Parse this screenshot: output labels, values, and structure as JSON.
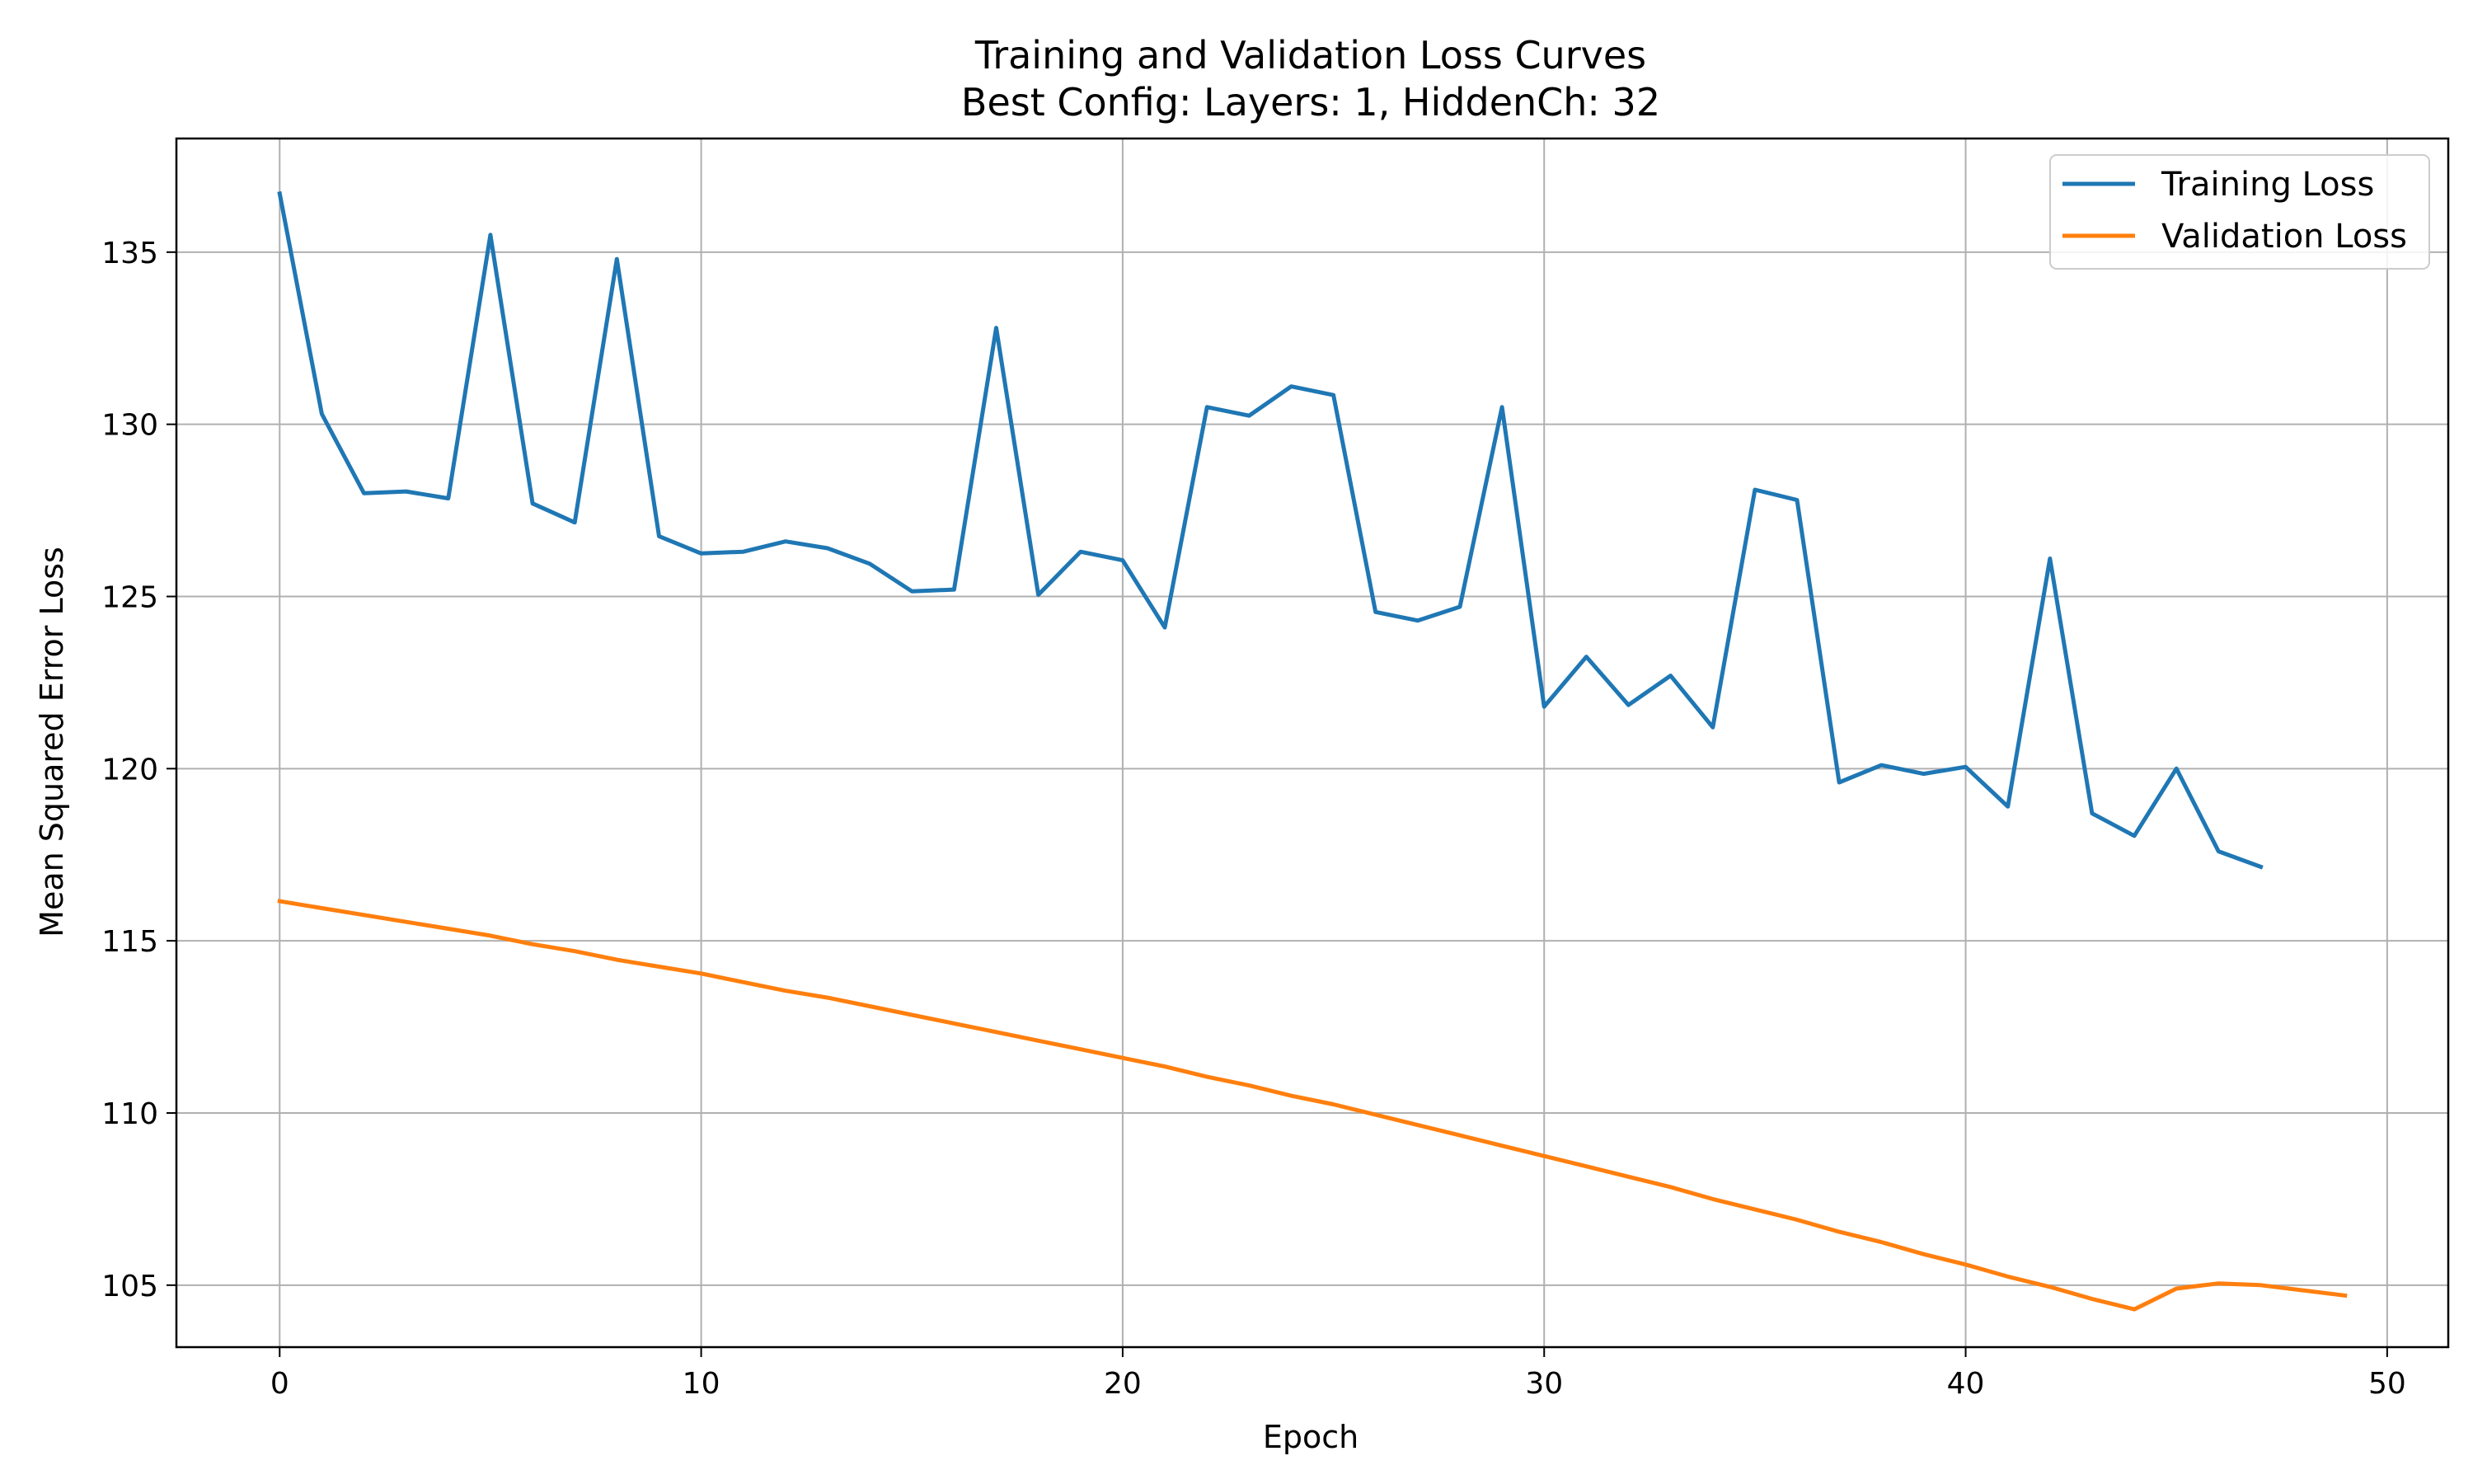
{
  "chart_data": {
    "type": "line",
    "title": "Training and Validation Loss Curves",
    "subtitle": "Best Config: Layers: 1, HiddenCh: 32",
    "xlabel": "Epoch",
    "ylabel": "Mean Squared Error Loss",
    "xlim": [
      -2.45,
      51.45
    ],
    "ylim": [
      103.2,
      138.3
    ],
    "xticks": [
      0,
      10,
      20,
      30,
      40,
      50
    ],
    "yticks": [
      105,
      110,
      115,
      120,
      125,
      130,
      135
    ],
    "grid": true,
    "legend_position": "top-right",
    "series": [
      {
        "name": "Training Loss",
        "color": "#1f77b4",
        "x": [
          0,
          1,
          2,
          3,
          4,
          5,
          6,
          7,
          8,
          9,
          10,
          11,
          12,
          13,
          14,
          15,
          16,
          17,
          18,
          19,
          20,
          21,
          22,
          23,
          24,
          25,
          26,
          27,
          28,
          29,
          30,
          31,
          32,
          33,
          34,
          35,
          36,
          37,
          38,
          39,
          40,
          41,
          42,
          43,
          44,
          45,
          46,
          47
        ],
        "values": [
          136.7,
          130.3,
          128.0,
          128.05,
          127.85,
          135.5,
          127.7,
          127.15,
          134.8,
          126.75,
          126.25,
          126.3,
          126.6,
          126.4,
          125.95,
          125.15,
          125.2,
          132.8,
          125.05,
          126.3,
          126.05,
          124.1,
          130.5,
          130.25,
          131.1,
          130.85,
          124.55,
          124.3,
          124.7,
          130.5,
          121.8,
          123.25,
          121.85,
          122.7,
          121.2,
          128.1,
          127.8,
          119.6,
          120.1,
          119.85,
          120.05,
          118.9,
          126.1,
          118.7,
          118.05,
          120.0,
          117.6,
          117.15
        ]
      },
      {
        "name": "Validation Loss",
        "color": "#ff7f0e",
        "x": [
          0,
          1,
          2,
          3,
          4,
          5,
          6,
          7,
          8,
          9,
          10,
          11,
          12,
          13,
          14,
          15,
          16,
          17,
          18,
          19,
          20,
          21,
          22,
          23,
          24,
          25,
          26,
          27,
          28,
          29,
          30,
          31,
          32,
          33,
          34,
          35,
          36,
          37,
          38,
          39,
          40,
          41,
          42,
          43,
          44,
          45,
          46,
          47,
          48,
          49
        ],
        "values": [
          116.15,
          115.95,
          115.75,
          115.55,
          115.35,
          115.15,
          114.9,
          114.7,
          114.45,
          114.25,
          114.05,
          113.8,
          113.55,
          113.35,
          113.1,
          112.85,
          112.6,
          112.35,
          112.1,
          111.85,
          111.6,
          111.35,
          111.05,
          110.8,
          110.5,
          110.25,
          109.95,
          109.65,
          109.35,
          109.05,
          108.75,
          108.45,
          108.15,
          107.85,
          107.5,
          107.2,
          106.9,
          106.55,
          106.25,
          105.9,
          105.6,
          105.25,
          104.95,
          104.6,
          104.3,
          104.9,
          105.05,
          105.0,
          104.85,
          104.7
        ]
      }
    ]
  }
}
